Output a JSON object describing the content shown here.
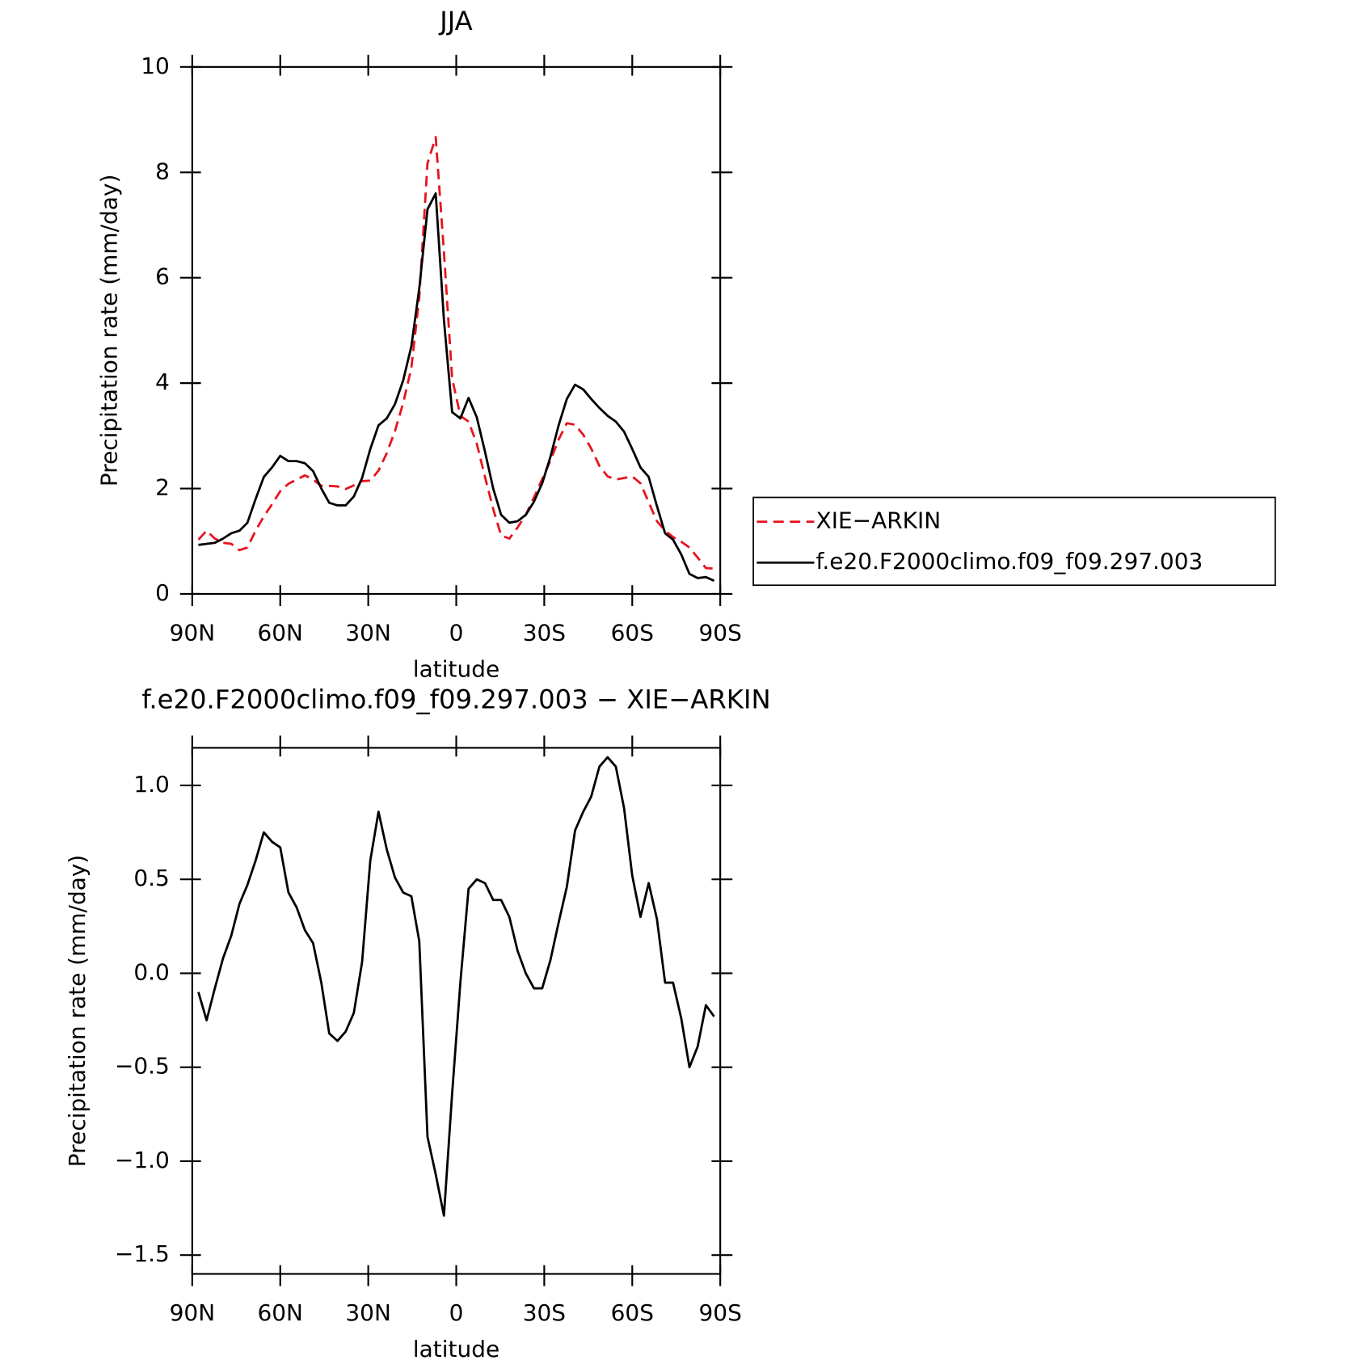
{
  "chart_data": [
    {
      "type": "line",
      "title": "JJA",
      "xlabel": "latitude",
      "ylabel": "Precipitation rate (mm/day)",
      "x": [
        87.9,
        85.1,
        82.3,
        79.5,
        76.7,
        73.9,
        71.2,
        68.4,
        65.6,
        62.8,
        60.0,
        57.2,
        54.4,
        51.6,
        48.8,
        46.0,
        43.3,
        40.5,
        37.7,
        34.9,
        32.1,
        29.3,
        26.5,
        23.7,
        20.9,
        18.1,
        15.3,
        12.6,
        9.8,
        7.0,
        4.2,
        1.4,
        -1.4,
        -4.2,
        -7.0,
        -9.8,
        -12.6,
        -15.3,
        -18.1,
        -20.9,
        -23.7,
        -26.5,
        -29.3,
        -32.1,
        -34.9,
        -37.7,
        -40.5,
        -43.3,
        -46.0,
        -48.8,
        -51.6,
        -54.4,
        -57.2,
        -60.0,
        -62.8,
        -65.6,
        -68.4,
        -71.2,
        -73.9,
        -76.7,
        -79.5,
        -82.3,
        -85.1,
        -87.9
      ],
      "series": [
        {
          "name": "XIE−ARKIN",
          "color": "#e8141e",
          "dash": true,
          "values": [
            1.03,
            1.2,
            1.05,
            0.97,
            0.95,
            0.83,
            0.88,
            1.2,
            1.47,
            1.7,
            1.95,
            2.09,
            2.17,
            2.25,
            2.17,
            2.05,
            2.05,
            2.04,
            1.99,
            2.06,
            2.14,
            2.15,
            2.34,
            2.67,
            3.09,
            3.62,
            4.29,
            5.63,
            8.17,
            8.67,
            6.49,
            4.09,
            3.38,
            3.27,
            2.85,
            2.22,
            1.61,
            1.11,
            1.05,
            1.26,
            1.5,
            1.83,
            2.18,
            2.53,
            2.93,
            3.24,
            3.21,
            3.02,
            2.76,
            2.43,
            2.23,
            2.17,
            2.2,
            2.23,
            2.1,
            1.74,
            1.38,
            1.2,
            1.08,
            0.99,
            0.88,
            0.69,
            0.49,
            0.48
          ]
        },
        {
          "name": "f.e20.F2000climo.f09_f09.297.003",
          "color": "#000000",
          "dash": false,
          "values": [
            0.93,
            0.95,
            0.97,
            1.05,
            1.15,
            1.2,
            1.35,
            1.8,
            2.22,
            2.4,
            2.62,
            2.52,
            2.52,
            2.48,
            2.33,
            2.0,
            1.73,
            1.68,
            1.68,
            1.85,
            2.2,
            2.75,
            3.2,
            3.33,
            3.6,
            4.05,
            4.7,
            5.8,
            7.3,
            7.6,
            5.2,
            3.45,
            3.33,
            3.72,
            3.35,
            2.7,
            2.0,
            1.5,
            1.35,
            1.38,
            1.5,
            1.75,
            2.1,
            2.6,
            3.2,
            3.7,
            3.97,
            3.88,
            3.7,
            3.53,
            3.38,
            3.27,
            3.08,
            2.75,
            2.4,
            2.22,
            1.67,
            1.15,
            1.03,
            0.75,
            0.38,
            0.3,
            0.32,
            0.25
          ]
        }
      ],
      "xlim": [
        90,
        -90
      ],
      "xticks": [
        {
          "value": 90,
          "label": "90N"
        },
        {
          "value": 60,
          "label": "60N"
        },
        {
          "value": 30,
          "label": "30N"
        },
        0,
        {
          "value": -30,
          "label": "30S"
        },
        {
          "value": -60,
          "label": "60S"
        },
        {
          "value": -90,
          "label": "90S"
        }
      ],
      "ylim": [
        0,
        10
      ],
      "yticks": [
        0,
        2,
        4,
        6,
        8,
        10
      ],
      "legend": "right"
    },
    {
      "type": "line",
      "title": "f.e20.F2000climo.f09_f09.297.003 − XIE−ARKIN",
      "xlabel": "latitude",
      "ylabel": "Precipitation rate (mm/day)",
      "x": [
        87.9,
        85.1,
        82.3,
        79.5,
        76.7,
        73.9,
        71.2,
        68.4,
        65.6,
        62.8,
        60.0,
        57.2,
        54.4,
        51.6,
        48.8,
        46.0,
        43.3,
        40.5,
        37.7,
        34.9,
        32.1,
        29.3,
        26.5,
        23.7,
        20.9,
        18.1,
        15.3,
        12.6,
        9.8,
        7.0,
        4.2,
        1.4,
        -1.4,
        -4.2,
        -7.0,
        -9.8,
        -12.6,
        -15.3,
        -18.1,
        -20.9,
        -23.7,
        -26.5,
        -29.3,
        -32.1,
        -34.9,
        -37.7,
        -40.5,
        -43.3,
        -46.0,
        -48.8,
        -51.6,
        -54.4,
        -57.2,
        -60.0,
        -62.8,
        -65.6,
        -68.4,
        -71.2,
        -73.9,
        -76.7,
        -79.5,
        -82.3,
        -85.1,
        -87.9
      ],
      "color": "#000000",
      "values": [
        -0.1,
        -0.25,
        -0.08,
        0.08,
        0.2,
        0.37,
        0.47,
        0.6,
        0.75,
        0.7,
        0.67,
        0.43,
        0.35,
        0.23,
        0.16,
        -0.05,
        -0.32,
        -0.36,
        -0.31,
        -0.21,
        0.06,
        0.6,
        0.86,
        0.66,
        0.51,
        0.43,
        0.41,
        0.17,
        -0.87,
        -1.07,
        -1.29,
        -0.64,
        -0.05,
        0.45,
        0.5,
        0.48,
        0.39,
        0.39,
        0.3,
        0.12,
        0.0,
        -0.08,
        -0.08,
        0.07,
        0.27,
        0.46,
        0.76,
        0.86,
        0.94,
        1.1,
        1.15,
        1.1,
        0.88,
        0.52,
        0.3,
        0.48,
        0.29,
        -0.05,
        -0.05,
        -0.24,
        -0.5,
        -0.39,
        -0.17,
        -0.23
      ],
      "xlim": [
        90,
        -90
      ],
      "xticks": [
        {
          "value": 90,
          "label": "90N"
        },
        {
          "value": 60,
          "label": "60N"
        },
        {
          "value": 30,
          "label": "30N"
        },
        0,
        {
          "value": -30,
          "label": "30S"
        },
        {
          "value": -60,
          "label": "60S"
        },
        {
          "value": -90,
          "label": "90S"
        }
      ],
      "ylim": [
        -1.6,
        1.2
      ],
      "yticks": [
        {
          "value": -1.5,
          "label": "−1.5"
        },
        {
          "value": -1.0,
          "label": "−1.0"
        },
        {
          "value": -0.5,
          "label": "−0.5"
        },
        {
          "value": 0.0,
          "label": "0.0"
        },
        0.5,
        {
          "value": 1.0,
          "label": "1.0"
        }
      ]
    }
  ]
}
